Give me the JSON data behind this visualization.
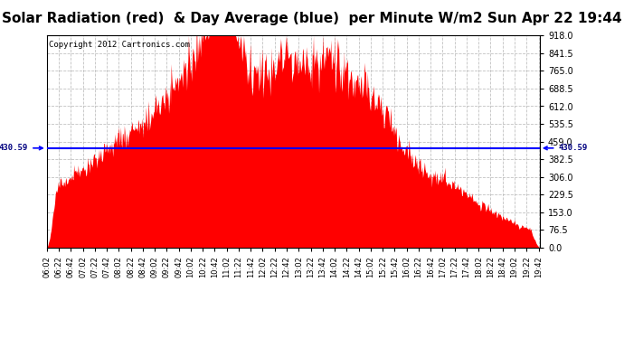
{
  "title": "Solar Radiation (red)  & Day Average (blue)  per Minute W/m2 Sun Apr 22 19:44",
  "copyright": "Copyright 2012 Cartronics.com",
  "y_min": 0.0,
  "y_max": 918.0,
  "y_ticks": [
    0.0,
    76.5,
    153.0,
    229.5,
    306.0,
    382.5,
    459.0,
    535.5,
    612.0,
    688.5,
    765.0,
    841.5,
    918.0
  ],
  "day_average": 430.59,
  "left_label": "430.59",
  "right_label": "430.59",
  "fill_color": "#FF0000",
  "line_color": "#0000FF",
  "bg_color": "#FFFFFF",
  "grid_color": "#BBBBBB",
  "x_start_hour": 6,
  "x_start_min": 2,
  "x_end_hour": 19,
  "x_end_min": 44,
  "num_points": 822,
  "title_fontsize": 11,
  "copyright_fontsize": 6.5,
  "tick_fontsize": 6,
  "ytick_fontsize": 7
}
